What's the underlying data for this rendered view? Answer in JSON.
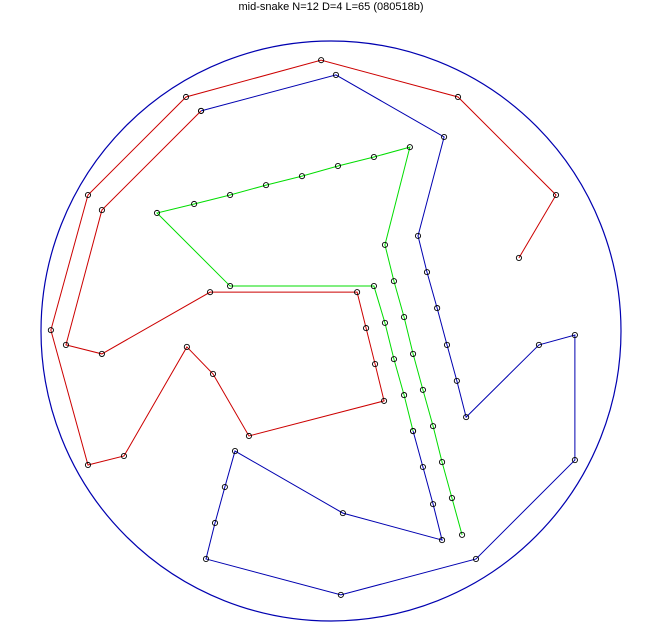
{
  "chart_data": {
    "type": "line",
    "title": "mid-snake N=12 D=4 L=65 (080518b)",
    "grid": false,
    "axes_visible": false,
    "boundary": {
      "shape": "circle",
      "center": [
        0,
        0
      ],
      "radius": 1,
      "color": "#0000b0"
    },
    "marker": {
      "shape": "open-circle",
      "color": "#000000"
    },
    "series": [
      {
        "color": "#cc0000",
        "points": [
          [
            0.648,
            0.252
          ],
          [
            0.776,
            0.469
          ],
          [
            0.438,
            0.807
          ],
          [
            -0.034,
            0.934
          ],
          [
            -0.5,
            0.807
          ],
          [
            -0.838,
            0.469
          ],
          [
            -0.966,
            0.003
          ],
          [
            -0.838,
            -0.462
          ],
          [
            -0.714,
            -0.431
          ],
          [
            -0.497,
            -0.055
          ],
          [
            -0.407,
            -0.148
          ],
          [
            -0.283,
            -0.362
          ],
          [
            0.183,
            -0.241
          ],
          [
            0.152,
            -0.114
          ],
          [
            0.121,
            0.01
          ],
          [
            0.09,
            0.134
          ],
          [
            -0.417,
            0.134
          ],
          [
            -0.79,
            -0.079
          ],
          [
            -0.914,
            -0.048
          ],
          [
            -0.79,
            0.417
          ],
          [
            -0.448,
            0.759
          ]
        ]
      },
      {
        "color": "#0000b0",
        "points": [
          [
            -0.448,
            0.759
          ],
          [
            0.017,
            0.883
          ],
          [
            0.39,
            0.669
          ],
          [
            0.3,
            0.328
          ],
          [
            0.331,
            0.203
          ],
          [
            0.366,
            0.079
          ],
          [
            0.4,
            -0.048
          ],
          [
            0.434,
            -0.172
          ],
          [
            0.466,
            -0.297
          ],
          [
            0.717,
            -0.048
          ],
          [
            0.841,
            -0.014
          ],
          [
            0.841,
            -0.445
          ],
          [
            0.5,
            -0.786
          ],
          [
            0.034,
            -0.91
          ],
          [
            -0.431,
            -0.786
          ],
          [
            -0.4,
            -0.662
          ],
          [
            -0.366,
            -0.538
          ],
          [
            -0.331,
            -0.414
          ],
          [
            0.041,
            -0.628
          ],
          [
            0.383,
            -0.721
          ],
          [
            0.352,
            -0.597
          ],
          [
            0.317,
            -0.469
          ],
          [
            0.283,
            -0.345
          ]
        ]
      },
      {
        "color": "#00dd00",
        "points": [
          [
            0.283,
            -0.345
          ],
          [
            0.252,
            -0.221
          ],
          [
            0.217,
            -0.097
          ],
          [
            0.186,
            0.028
          ],
          [
            0.148,
            0.155
          ],
          [
            -0.348,
            0.155
          ],
          [
            -0.6,
            0.407
          ],
          [
            -0.472,
            0.438
          ],
          [
            -0.348,
            0.469
          ],
          [
            -0.224,
            0.503
          ],
          [
            -0.1,
            0.534
          ],
          [
            0.024,
            0.569
          ],
          [
            0.148,
            0.6
          ],
          [
            0.272,
            0.634
          ],
          [
            0.186,
            0.297
          ],
          [
            0.217,
            0.172
          ],
          [
            0.252,
            0.048
          ],
          [
            0.283,
            -0.079
          ],
          [
            0.317,
            -0.203
          ],
          [
            0.352,
            -0.328
          ],
          [
            0.383,
            -0.452
          ],
          [
            0.417,
            -0.576
          ],
          [
            0.452,
            -0.703
          ]
        ]
      }
    ]
  }
}
